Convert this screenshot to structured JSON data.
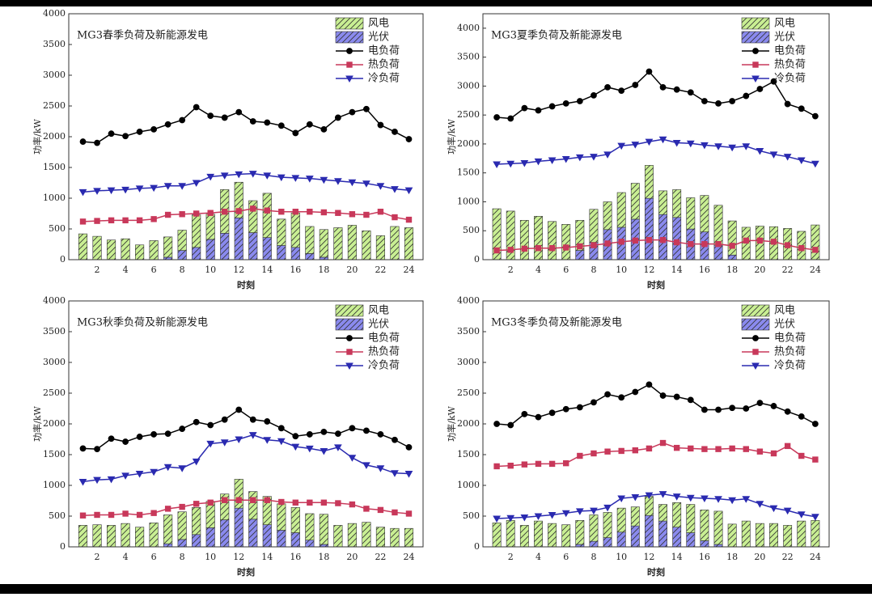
{
  "chart_data": [
    {
      "type": "bar",
      "title": "MG3春季负荷及新能源发电",
      "xlabel": "时刻",
      "ylabel": "功率/kW",
      "x": [
        1,
        2,
        3,
        4,
        5,
        6,
        7,
        8,
        9,
        10,
        11,
        12,
        13,
        14,
        15,
        16,
        17,
        18,
        19,
        20,
        21,
        22,
        23,
        24
      ],
      "xlim": [
        0,
        25
      ],
      "xticks": [
        2,
        4,
        6,
        8,
        10,
        12,
        14,
        16,
        18,
        20,
        22,
        24
      ],
      "ylim": [
        0,
        4000
      ],
      "yticks": [
        0,
        500,
        1000,
        1500,
        2000,
        2500,
        3000,
        3500,
        4000
      ],
      "legend": "upper right",
      "series": [
        {
          "name": "风电",
          "type": "bar",
          "color": "#c9ef93",
          "values": [
            420,
            380,
            320,
            340,
            240,
            310,
            330,
            330,
            530,
            410,
            710,
            580,
            520,
            720,
            430,
            560,
            440,
            450,
            520,
            560,
            470,
            390,
            540,
            520
          ]
        },
        {
          "name": "光伏",
          "type": "bar",
          "color": "#8a8aee",
          "values": [
            0,
            0,
            0,
            0,
            0,
            0,
            40,
            150,
            200,
            330,
            430,
            680,
            440,
            360,
            230,
            200,
            100,
            40,
            0,
            0,
            0,
            0,
            0,
            0
          ]
        },
        {
          "name": "电负荷",
          "type": "line",
          "marker": "circle",
          "color": "#000000",
          "values": [
            1920,
            1900,
            2050,
            2010,
            2080,
            2120,
            2200,
            2270,
            2480,
            2340,
            2310,
            2400,
            2250,
            2230,
            2180,
            2060,
            2200,
            2120,
            2310,
            2400,
            2450,
            2190,
            2080,
            1960
          ]
        },
        {
          "name": "热负荷",
          "type": "line",
          "marker": "square",
          "color": "#c8385a",
          "values": [
            620,
            630,
            640,
            640,
            640,
            660,
            730,
            740,
            750,
            760,
            780,
            790,
            830,
            800,
            780,
            780,
            780,
            770,
            760,
            740,
            730,
            780,
            690,
            650
          ]
        },
        {
          "name": "冷负荷",
          "type": "line",
          "marker": "triangle-down",
          "color": "#2a2ab0",
          "values": [
            1100,
            1120,
            1130,
            1140,
            1160,
            1170,
            1200,
            1200,
            1250,
            1350,
            1370,
            1390,
            1400,
            1370,
            1340,
            1330,
            1320,
            1300,
            1280,
            1260,
            1240,
            1200,
            1150,
            1130
          ]
        }
      ]
    },
    {
      "type": "bar",
      "title": "MG3夏季负荷及新能源发电",
      "xlabel": "时刻",
      "ylabel": "功率/kW",
      "x": [
        1,
        2,
        3,
        4,
        5,
        6,
        7,
        8,
        9,
        10,
        11,
        12,
        13,
        14,
        15,
        16,
        17,
        18,
        19,
        20,
        21,
        22,
        23,
        24
      ],
      "xlim": [
        0,
        25
      ],
      "xticks": [
        2,
        4,
        6,
        8,
        10,
        12,
        14,
        16,
        18,
        20,
        22,
        24
      ],
      "ylim": [
        0,
        4250
      ],
      "yticks": [
        0,
        500,
        1000,
        1500,
        2000,
        2500,
        3000,
        3500,
        4000
      ],
      "legend": "upper right",
      "series": [
        {
          "name": "风电",
          "type": "bar",
          "color": "#c9ef93",
          "values": [
            880,
            840,
            680,
            750,
            660,
            610,
            520,
            570,
            480,
            600,
            620,
            570,
            410,
            480,
            540,
            630,
            690,
            590,
            560,
            580,
            570,
            540,
            490,
            600
          ]
        },
        {
          "name": "光伏",
          "type": "bar",
          "color": "#8a8aee",
          "values": [
            0,
            0,
            0,
            0,
            0,
            0,
            160,
            300,
            520,
            560,
            700,
            1060,
            780,
            730,
            530,
            480,
            250,
            80,
            0,
            0,
            0,
            0,
            0,
            0
          ]
        },
        {
          "name": "电负荷",
          "type": "line",
          "marker": "circle",
          "color": "#000000",
          "values": [
            2460,
            2440,
            2620,
            2580,
            2650,
            2700,
            2740,
            2840,
            2980,
            2920,
            3020,
            3250,
            2980,
            2940,
            2890,
            2740,
            2700,
            2740,
            2830,
            2950,
            3080,
            2690,
            2610,
            2480
          ]
        },
        {
          "name": "热负荷",
          "type": "line",
          "marker": "square",
          "color": "#c8385a",
          "values": [
            160,
            170,
            190,
            200,
            200,
            210,
            230,
            250,
            280,
            310,
            330,
            340,
            340,
            300,
            270,
            270,
            270,
            240,
            330,
            330,
            310,
            250,
            200,
            170
          ]
        },
        {
          "name": "冷负荷",
          "type": "line",
          "marker": "triangle-down",
          "color": "#2a2ab0",
          "values": [
            1650,
            1660,
            1670,
            1700,
            1720,
            1740,
            1770,
            1780,
            1820,
            1970,
            1990,
            2040,
            2080,
            2020,
            2010,
            1980,
            1960,
            1940,
            1960,
            1880,
            1820,
            1780,
            1720,
            1660
          ]
        }
      ]
    },
    {
      "type": "bar",
      "title": "MG3秋季负荷及新能源发电",
      "xlabel": "时刻",
      "ylabel": "功率/kW",
      "x": [
        1,
        2,
        3,
        4,
        5,
        6,
        7,
        8,
        9,
        10,
        11,
        12,
        13,
        14,
        15,
        16,
        17,
        18,
        19,
        20,
        21,
        22,
        23,
        24
      ],
      "xlim": [
        0,
        25
      ],
      "xticks": [
        2,
        4,
        6,
        8,
        10,
        12,
        14,
        16,
        18,
        20,
        22,
        24
      ],
      "ylim": [
        0,
        4000
      ],
      "yticks": [
        0,
        500,
        1000,
        1500,
        2000,
        2500,
        3000,
        3500,
        4000
      ],
      "legend": "upper right",
      "series": [
        {
          "name": "风电",
          "type": "bar",
          "color": "#c9ef93",
          "values": [
            350,
            360,
            350,
            380,
            320,
            390,
            470,
            450,
            440,
            430,
            420,
            470,
            450,
            460,
            430,
            410,
            430,
            490,
            350,
            380,
            400,
            320,
            300,
            300
          ]
        },
        {
          "name": "光伏",
          "type": "bar",
          "color": "#8a8aee",
          "values": [
            0,
            0,
            0,
            0,
            0,
            0,
            50,
            120,
            200,
            310,
            440,
            630,
            450,
            360,
            270,
            230,
            110,
            40,
            0,
            0,
            0,
            0,
            0,
            0
          ]
        },
        {
          "name": "电负荷",
          "type": "line",
          "marker": "circle",
          "color": "#000000",
          "values": [
            1600,
            1590,
            1760,
            1710,
            1790,
            1830,
            1840,
            1920,
            2030,
            1980,
            2070,
            2230,
            2070,
            2040,
            1930,
            1800,
            1830,
            1870,
            1840,
            1930,
            1890,
            1830,
            1740,
            1620
          ]
        },
        {
          "name": "热负荷",
          "type": "line",
          "marker": "square",
          "color": "#c8385a",
          "values": [
            510,
            520,
            520,
            540,
            520,
            550,
            620,
            650,
            700,
            720,
            760,
            760,
            760,
            760,
            730,
            720,
            720,
            720,
            710,
            690,
            620,
            600,
            560,
            540
          ]
        },
        {
          "name": "冷负荷",
          "type": "line",
          "marker": "triangle-down",
          "color": "#2a2ab0",
          "values": [
            1060,
            1090,
            1100,
            1160,
            1190,
            1220,
            1300,
            1280,
            1390,
            1680,
            1700,
            1750,
            1820,
            1740,
            1720,
            1630,
            1600,
            1560,
            1620,
            1450,
            1330,
            1280,
            1200,
            1190
          ]
        }
      ]
    },
    {
      "type": "bar",
      "title": "MG3冬季负荷及新能源发电",
      "xlabel": "时刻",
      "ylabel": "功率/kW",
      "x": [
        1,
        2,
        3,
        4,
        5,
        6,
        7,
        8,
        9,
        10,
        11,
        12,
        13,
        14,
        15,
        16,
        17,
        18,
        19,
        20,
        21,
        22,
        23,
        24
      ],
      "xlim": [
        0,
        25
      ],
      "xticks": [
        2,
        4,
        6,
        8,
        10,
        12,
        14,
        16,
        18,
        20,
        22,
        24
      ],
      "ylim": [
        0,
        4000
      ],
      "yticks": [
        0,
        500,
        1000,
        1500,
        2000,
        2500,
        3000,
        3500,
        4000
      ],
      "legend": "upper right",
      "series": [
        {
          "name": "风电",
          "type": "bar",
          "color": "#c9ef93",
          "values": [
            390,
            430,
            350,
            420,
            380,
            360,
            390,
            430,
            410,
            390,
            310,
            310,
            270,
            400,
            460,
            500,
            540,
            370,
            420,
            380,
            380,
            350,
            420,
            430
          ]
        },
        {
          "name": "光伏",
          "type": "bar",
          "color": "#8a8aee",
          "values": [
            0,
            0,
            0,
            0,
            0,
            0,
            40,
            90,
            150,
            240,
            340,
            510,
            420,
            320,
            230,
            100,
            40,
            0,
            0,
            0,
            0,
            0,
            0,
            0
          ]
        },
        {
          "name": "电负荷",
          "type": "line",
          "marker": "circle",
          "color": "#000000",
          "values": [
            2000,
            1980,
            2160,
            2110,
            2180,
            2240,
            2270,
            2350,
            2480,
            2430,
            2520,
            2640,
            2460,
            2440,
            2390,
            2230,
            2230,
            2260,
            2250,
            2340,
            2290,
            2200,
            2120,
            2000
          ]
        },
        {
          "name": "热负荷",
          "type": "line",
          "marker": "square",
          "color": "#c8385a",
          "values": [
            1310,
            1320,
            1340,
            1350,
            1350,
            1360,
            1480,
            1520,
            1550,
            1560,
            1570,
            1600,
            1690,
            1610,
            1600,
            1590,
            1590,
            1600,
            1590,
            1550,
            1520,
            1640,
            1480,
            1420
          ]
        },
        {
          "name": "冷负荷",
          "type": "line",
          "marker": "triangle-down",
          "color": "#2a2ab0",
          "values": [
            460,
            470,
            480,
            500,
            520,
            550,
            580,
            590,
            640,
            790,
            810,
            840,
            860,
            820,
            800,
            790,
            780,
            760,
            780,
            700,
            630,
            590,
            530,
            490
          ]
        }
      ]
    }
  ]
}
